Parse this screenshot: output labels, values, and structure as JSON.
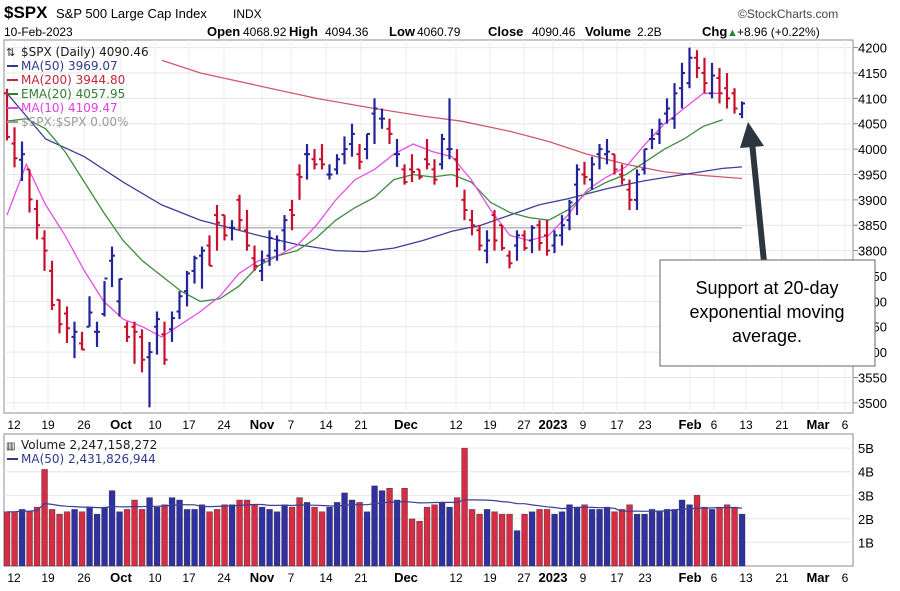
{
  "header": {
    "symbol": "$SPX",
    "name": "S&P 500 Large Cap Index",
    "exchange": "INDX",
    "watermark": "©StockCharts.com",
    "date": "10-Feb-2023",
    "ohlc": [
      {
        "label": "Open",
        "value": "4068.92"
      },
      {
        "label": "High",
        "value": "4094.36"
      },
      {
        "label": "Low",
        "value": "4060.79"
      },
      {
        "label": "Close",
        "value": "4090.46"
      },
      {
        "label": "Volume",
        "value": "2.2B"
      },
      {
        "label": "Chg",
        "value": "+8.96 (+0.22%)"
      }
    ],
    "chg_arrow": "▲"
  },
  "legend": [
    {
      "text": "$SPX (Daily) 4090.46",
      "color": "#1a1a1a"
    },
    {
      "text": "MA(50) 3969.07",
      "color": "#2e3a8c"
    },
    {
      "text": "MA(200) 3944.80",
      "color": "#c0283c"
    },
    {
      "text": "EMA(20) 4057.95",
      "color": "#2f7f2f"
    },
    {
      "text": "MA(10) 4109.47",
      "color": "#e33ee0"
    },
    {
      "text": "$SPX:$SPX 0.00%",
      "color": "#9a9a9a"
    }
  ],
  "volume_legend": [
    {
      "text": "Volume 2,247,158,272",
      "color": "#1a1a1a"
    },
    {
      "text": "MA(50) 2,431,826,944",
      "color": "#2e3a8c"
    }
  ],
  "annotation": {
    "text": [
      "Support at 20-day",
      "exponential moving",
      "average."
    ]
  },
  "colors": {
    "up": "#23239a",
    "down": "#c8102e",
    "vol_up": "#3030a0",
    "vol_down": "#d62c44",
    "ma50": "#3c3f99",
    "ma200": "#d05a6a",
    "ema20": "#3f8a3f",
    "ma10": "#e64fe6",
    "ref": "#b8b8b8"
  },
  "chart_data": {
    "type": "candlestick",
    "y_ticks": [
      "4200",
      "4150",
      "4100",
      "4050",
      "4000",
      "3950",
      "3900",
      "3850",
      "3800",
      "3750",
      "3700",
      "3650",
      "3600",
      "3550",
      "3500"
    ],
    "ylim": [
      3480,
      4215
    ],
    "vol_ticks": [
      "5B",
      "4B",
      "3B",
      "2B",
      "1B"
    ],
    "vol_ylim": [
      0,
      5.6
    ],
    "x_ticks": [
      "12",
      "19",
      "26",
      "Oct",
      "10",
      "17",
      "24",
      "Nov",
      "7",
      "14",
      "21",
      "Dec",
      "12",
      "19",
      "27",
      "2023",
      "9",
      "17",
      "23",
      "Feb",
      "6",
      "13",
      "21",
      "Mar",
      "6"
    ],
    "bold_ticks": [
      "Oct",
      "Nov",
      "Dec",
      "2023",
      "Feb",
      "Mar"
    ],
    "reference_level": 3845,
    "candles": [
      [
        4110,
        4119,
        4017,
        4024,
        2.3
      ],
      [
        4011,
        4043,
        3964,
        3982,
        2.3
      ],
      [
        3979,
        4015,
        3937,
        3990,
        2.4
      ],
      [
        3960,
        3960,
        3875,
        3901,
        2.3
      ],
      [
        3882,
        3900,
        3822,
        3850,
        2.5
      ],
      [
        3824,
        3840,
        3760,
        3800,
        4.1
      ],
      [
        3760,
        3780,
        3683,
        3693,
        2.4
      ],
      [
        3703,
        3704,
        3637,
        3655,
        2.2
      ],
      [
        3676,
        3690,
        3618,
        3647,
        2.3
      ],
      [
        3630,
        3660,
        3588,
        3640,
        2.4
      ],
      [
        3617,
        3640,
        3604,
        3605,
        2.3
      ],
      [
        3650,
        3710,
        3650,
        3678,
        2.5
      ],
      [
        3640,
        3660,
        3610,
        3640,
        2.2
      ],
      [
        3675,
        3740,
        3670,
        3745,
        2.5
      ],
      [
        3780,
        3808,
        3728,
        3790,
        3.2
      ],
      [
        3700,
        3745,
        3670,
        3744,
        2.3
      ],
      [
        3650,
        3660,
        3620,
        3630,
        2.4
      ],
      [
        3650,
        3660,
        3577,
        3640,
        2.8
      ],
      [
        3630,
        3645,
        3560,
        3585,
        2.4
      ],
      [
        3590,
        3620,
        3491,
        3600,
        2.9
      ],
      [
        3650,
        3680,
        3595,
        3665,
        2.5
      ],
      [
        3635,
        3660,
        3575,
        3585,
        2.6
      ],
      [
        3645,
        3680,
        3620,
        3667,
        2.9
      ],
      [
        3680,
        3720,
        3665,
        3710,
        2.8
      ],
      [
        3720,
        3760,
        3690,
        3755,
        2.4
      ],
      [
        3760,
        3790,
        3735,
        3785,
        2.4
      ],
      [
        3790,
        3808,
        3725,
        3800,
        2.6
      ],
      [
        3810,
        3830,
        3770,
        3770,
        2.3
      ],
      [
        3870,
        3890,
        3800,
        3855,
        2.4
      ],
      [
        3870,
        3870,
        3820,
        3830,
        2.6
      ],
      [
        3845,
        3860,
        3820,
        3845,
        2.6
      ],
      [
        3900,
        3910,
        3840,
        3860,
        2.8
      ],
      [
        3840,
        3880,
        3800,
        3810,
        2.8
      ],
      [
        3785,
        3810,
        3760,
        3770,
        2.6
      ],
      [
        3760,
        3800,
        3740,
        3780,
        2.5
      ],
      [
        3790,
        3840,
        3770,
        3825,
        2.4
      ],
      [
        3800,
        3830,
        3780,
        3820,
        2.3
      ],
      [
        3840,
        3870,
        3800,
        3860,
        2.6
      ],
      [
        3880,
        3900,
        3840,
        3870,
        2.5
      ],
      [
        3950,
        3970,
        3900,
        3945,
        2.9
      ],
      [
        3990,
        4010,
        3940,
        3990,
        2.7
      ],
      [
        3980,
        4000,
        3960,
        3970,
        2.5
      ],
      [
        3980,
        4010,
        3960,
        3970,
        2.3
      ],
      [
        3950,
        3970,
        3940,
        3950,
        2.5
      ],
      [
        3960,
        3990,
        3950,
        3980,
        2.7
      ],
      [
        3990,
        4025,
        3970,
        4000,
        3.1
      ],
      [
        4010,
        4050,
        3985,
        4030,
        2.8
      ],
      [
        3990,
        4010,
        3960,
        3975,
        2.7
      ],
      [
        4000,
        4030,
        3980,
        4030,
        2.3
      ],
      [
        4070,
        4100,
        4010,
        4080,
        3.4
      ],
      [
        4060,
        4080,
        4040,
        4060,
        3.2
      ],
      [
        4040,
        4060,
        4010,
        4030,
        3.3
      ],
      [
        3990,
        4020,
        3965,
        3990,
        2.8
      ],
      [
        3960,
        3970,
        3930,
        3935,
        3.3
      ],
      [
        3960,
        3990,
        3935,
        3955,
        2.0
      ],
      [
        3960,
        3960,
        3940,
        3945,
        1.9
      ],
      [
        3980,
        4020,
        3960,
        3970,
        2.5
      ],
      [
        3960,
        3980,
        3930,
        3940,
        2.6
      ],
      [
        3970,
        4030,
        3960,
        4020,
        2.7
      ],
      [
        4000,
        4100,
        3980,
        4000,
        2.5
      ],
      [
        3980,
        4000,
        3925,
        3960,
        2.9
      ],
      [
        3900,
        3920,
        3860,
        3880,
        5.0
      ],
      [
        3860,
        3880,
        3830,
        3850,
        2.4
      ],
      [
        3840,
        3850,
        3800,
        3810,
        2.2
      ],
      [
        3800,
        3840,
        3775,
        3820,
        2.4
      ],
      [
        3870,
        3880,
        3800,
        3820,
        2.3
      ],
      [
        3850,
        3850,
        3800,
        3805,
        2.2
      ],
      [
        3790,
        3800,
        3765,
        3775,
        2.2
      ],
      [
        3810,
        3840,
        3780,
        3830,
        1.5
      ],
      [
        3830,
        3840,
        3800,
        3805,
        2.2
      ],
      [
        3820,
        3850,
        3795,
        3845,
        2.3
      ],
      [
        3850,
        3860,
        3800,
        3815,
        2.4
      ],
      [
        3830,
        3860,
        3790,
        3800,
        2.4
      ],
      [
        3810,
        3840,
        3795,
        3830,
        2.2
      ],
      [
        3830,
        3870,
        3810,
        3850,
        2.3
      ],
      [
        3860,
        3900,
        3840,
        3895,
        2.6
      ],
      [
        3930,
        3970,
        3870,
        3960,
        2.5
      ],
      [
        3950,
        3975,
        3930,
        3945,
        2.6
      ],
      [
        3940,
        3985,
        3920,
        3970,
        2.4
      ],
      [
        3990,
        4010,
        3960,
        4000,
        2.4
      ],
      [
        3990,
        4020,
        3970,
        3995,
        2.5
      ],
      [
        3990,
        3990,
        3950,
        3960,
        2.3
      ],
      [
        3950,
        3970,
        3930,
        3940,
        2.4
      ],
      [
        3920,
        3940,
        3880,
        3900,
        2.6
      ],
      [
        3900,
        3960,
        3880,
        3950,
        2.2
      ],
      [
        3960,
        4000,
        3950,
        4000,
        2.2
      ],
      [
        4020,
        4040,
        4000,
        4020,
        2.4
      ],
      [
        4030,
        4060,
        4010,
        4050,
        2.3
      ],
      [
        4070,
        4100,
        4050,
        4080,
        2.4
      ],
      [
        4060,
        4130,
        4040,
        4110,
        2.4
      ],
      [
        4120,
        4170,
        4080,
        4150,
        2.8
      ],
      [
        4130,
        4200,
        4120,
        4180,
        2.6
      ],
      [
        4180,
        4195,
        4140,
        4160,
        3.0
      ],
      [
        4150,
        4180,
        4110,
        4130,
        2.5
      ],
      [
        4110,
        4170,
        4100,
        4145,
        2.4
      ],
      [
        4140,
        4160,
        4090,
        4110,
        2.5
      ],
      [
        4120,
        4150,
        4080,
        4100,
        2.6
      ],
      [
        4110,
        4120,
        4070,
        4080,
        2.5
      ],
      [
        4069,
        4094,
        4061,
        4090,
        2.2
      ]
    ],
    "ma50": [
      [
        0,
        4110
      ],
      [
        40,
        4020
      ],
      [
        80,
        3985
      ],
      [
        120,
        3935
      ],
      [
        160,
        3890
      ],
      [
        200,
        3860
      ],
      [
        230,
        3845
      ],
      [
        260,
        3830
      ],
      [
        300,
        3812
      ],
      [
        340,
        3800
      ],
      [
        370,
        3798
      ],
      [
        400,
        3805
      ],
      [
        430,
        3820
      ],
      [
        460,
        3838
      ],
      [
        490,
        3850
      ],
      [
        520,
        3870
      ],
      [
        550,
        3890
      ],
      [
        580,
        3902
      ],
      [
        620,
        3922
      ],
      [
        660,
        3938
      ],
      [
        700,
        3950
      ],
      [
        740,
        3962
      ],
      [
        760,
        3965
      ]
    ],
    "ma200": [
      [
        160,
        4175
      ],
      [
        200,
        4150
      ],
      [
        260,
        4125
      ],
      [
        320,
        4100
      ],
      [
        380,
        4080
      ],
      [
        430,
        4065
      ],
      [
        470,
        4055
      ],
      [
        520,
        4035
      ],
      [
        560,
        4015
      ],
      [
        600,
        3990
      ],
      [
        640,
        3970
      ],
      [
        680,
        3955
      ],
      [
        720,
        3948
      ],
      [
        760,
        3942
      ]
    ],
    "ema20": [
      [
        0,
        4055
      ],
      [
        20,
        4060
      ],
      [
        40,
        4040
      ],
      [
        60,
        3995
      ],
      [
        80,
        3935
      ],
      [
        100,
        3875
      ],
      [
        120,
        3820
      ],
      [
        140,
        3780
      ],
      [
        160,
        3750
      ],
      [
        180,
        3720
      ],
      [
        200,
        3700
      ],
      [
        220,
        3705
      ],
      [
        240,
        3730
      ],
      [
        260,
        3770
      ],
      [
        280,
        3790
      ],
      [
        300,
        3800
      ],
      [
        320,
        3825
      ],
      [
        340,
        3860
      ],
      [
        360,
        3885
      ],
      [
        380,
        3905
      ],
      [
        400,
        3940
      ],
      [
        420,
        3950
      ],
      [
        440,
        3945
      ],
      [
        460,
        3950
      ],
      [
        480,
        3935
      ],
      [
        500,
        3895
      ],
      [
        520,
        3875
      ],
      [
        540,
        3865
      ],
      [
        560,
        3860
      ],
      [
        580,
        3880
      ],
      [
        600,
        3915
      ],
      [
        620,
        3935
      ],
      [
        640,
        3950
      ],
      [
        660,
        3975
      ],
      [
        680,
        4000
      ],
      [
        700,
        4020
      ],
      [
        720,
        4045
      ],
      [
        740,
        4058
      ]
    ],
    "ma10": [
      [
        0,
        3870
      ],
      [
        20,
        3970
      ],
      [
        40,
        3890
      ],
      [
        60,
        3830
      ],
      [
        80,
        3760
      ],
      [
        100,
        3700
      ],
      [
        120,
        3665
      ],
      [
        140,
        3650
      ],
      [
        160,
        3630
      ],
      [
        180,
        3655
      ],
      [
        200,
        3680
      ],
      [
        220,
        3710
      ],
      [
        240,
        3755
      ],
      [
        260,
        3780
      ],
      [
        280,
        3790
      ],
      [
        300,
        3810
      ],
      [
        320,
        3850
      ],
      [
        340,
        3900
      ],
      [
        360,
        3940
      ],
      [
        380,
        3960
      ],
      [
        400,
        3990
      ],
      [
        420,
        4010
      ],
      [
        440,
        3995
      ],
      [
        460,
        3985
      ],
      [
        480,
        3940
      ],
      [
        500,
        3880
      ],
      [
        520,
        3830
      ],
      [
        540,
        3820
      ],
      [
        560,
        3830
      ],
      [
        580,
        3870
      ],
      [
        600,
        3920
      ],
      [
        620,
        3945
      ],
      [
        640,
        3965
      ],
      [
        660,
        4010
      ],
      [
        680,
        4050
      ],
      [
        700,
        4080
      ],
      [
        720,
        4110
      ],
      [
        740,
        4110
      ]
    ]
  }
}
